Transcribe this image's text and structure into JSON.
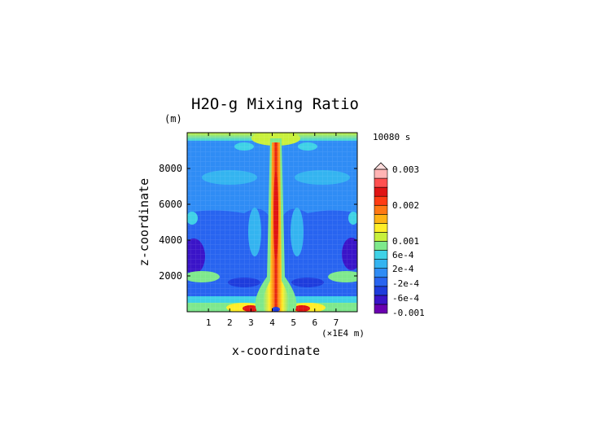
{
  "chart_data": {
    "type": "heatmap",
    "title": "H2O-g Mixing Ratio",
    "time_label": "10080 s",
    "xlabel": "x-coordinate",
    "x_unit": "(×1E4 m)",
    "ylabel": "z-coordinate",
    "y_unit": "(m)",
    "xlim": [
      0,
      8
    ],
    "ylim": [
      0,
      10000
    ],
    "x_ticks": [
      "1",
      "2",
      "3",
      "4",
      "5",
      "6",
      "7"
    ],
    "x_tick_values": [
      1,
      2,
      3,
      4,
      5,
      6,
      7
    ],
    "y_ticks": [
      "2000",
      "4000",
      "6000",
      "8000"
    ],
    "y_tick_values": [
      2000,
      4000,
      6000,
      8000
    ],
    "colorbar": {
      "labels": [
        "0.003",
        "0.002",
        "0.001",
        "6e-4",
        "2e-4",
        "-2e-4",
        "-6e-4",
        "-0.001"
      ],
      "colors": [
        "#6a00b0",
        "#3a14c8",
        "#1e3cdc",
        "#2864f0",
        "#2f8cf5",
        "#34b4f0",
        "#3fd2e6",
        "#7ee88c",
        "#c8f03c",
        "#ffee28",
        "#ffb414",
        "#ff7814",
        "#ff3c14",
        "#e01414",
        "#ff5050",
        "#ffb4b4"
      ]
    },
    "field_description": {
      "background_value": "-4e-4",
      "central_plume_max": "0.002",
      "center_x": 4
    }
  }
}
